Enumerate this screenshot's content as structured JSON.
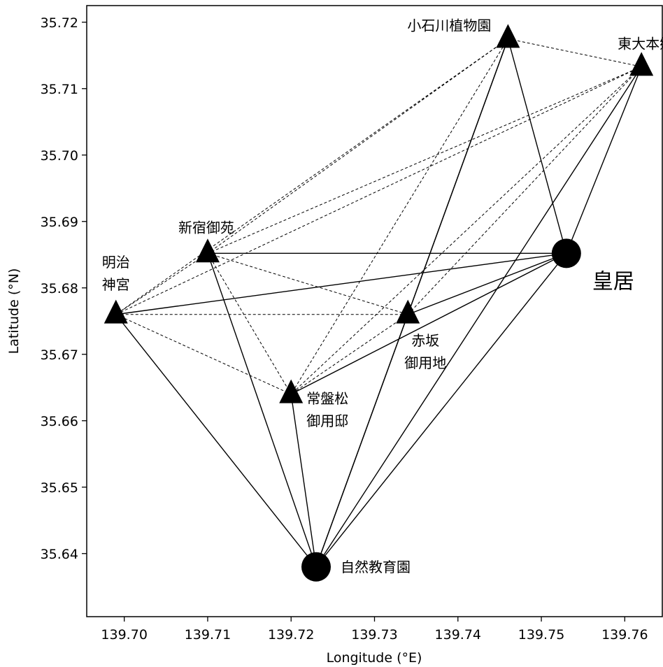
{
  "chart_data": {
    "type": "scatter",
    "title": "",
    "xlabel": "Longitude (°E)",
    "ylabel": "Latitude (°N)",
    "xlim": [
      139.6955,
      139.7645
    ],
    "ylim": [
      35.6305,
      35.7225
    ],
    "xticks": [
      139.7,
      139.71,
      139.72,
      139.73,
      139.74,
      139.75,
      139.76
    ],
    "xtick_labels": [
      "139.70",
      "139.71",
      "139.72",
      "139.73",
      "139.74",
      "139.75",
      "139.76"
    ],
    "yticks": [
      35.64,
      35.65,
      35.66,
      35.67,
      35.68,
      35.69,
      35.7,
      35.71,
      35.72
    ],
    "ytick_labels": [
      "35.64",
      "35.65",
      "35.66",
      "35.67",
      "35.68",
      "35.69",
      "35.70",
      "35.71",
      "35.72"
    ],
    "grid": false,
    "legend": "none",
    "marker_color": "#000000",
    "sites": [
      {
        "id": "koishikawa",
        "lines": [
          "小石川植物園"
        ],
        "lon": 139.746,
        "lat": 35.7175,
        "marker": "triangle",
        "label_side": "left"
      },
      {
        "id": "todai",
        "lines": [
          "東大本郷"
        ],
        "lon": 139.762,
        "lat": 35.7133,
        "marker": "triangle",
        "label_side": "above"
      },
      {
        "id": "shinjuku",
        "lines": [
          "新宿御苑"
        ],
        "lon": 139.71,
        "lat": 35.6852,
        "marker": "triangle",
        "label_side": "above"
      },
      {
        "id": "meiji",
        "lines": [
          "明治",
          "神宮"
        ],
        "lon": 139.699,
        "lat": 35.676,
        "marker": "triangle",
        "label_side": "above"
      },
      {
        "id": "akasaka",
        "lines": [
          "赤坂",
          "御用地"
        ],
        "lon": 139.734,
        "lat": 35.676,
        "marker": "triangle",
        "label_side": "below"
      },
      {
        "id": "tokiwamatsu",
        "lines": [
          "常盤松",
          "御用邸"
        ],
        "lon": 139.72,
        "lat": 35.664,
        "marker": "triangle",
        "label_side": "right"
      },
      {
        "id": "kokyo",
        "lines": [
          "皇居"
        ],
        "lon": 139.753,
        "lat": 35.6852,
        "marker": "circle",
        "label_side": "right",
        "large_label": true
      },
      {
        "id": "shizen",
        "lines": [
          "自然教育園"
        ],
        "lon": 139.723,
        "lat": 35.638,
        "marker": "circle",
        "label_side": "right"
      }
    ],
    "edges": [
      {
        "a": "shizen",
        "b": "meiji",
        "style": "solid"
      },
      {
        "a": "shizen",
        "b": "shinjuku",
        "style": "solid"
      },
      {
        "a": "shizen",
        "b": "tokiwamatsu",
        "style": "solid"
      },
      {
        "a": "shizen",
        "b": "akasaka",
        "style": "solid"
      },
      {
        "a": "shizen",
        "b": "kokyo",
        "style": "solid"
      },
      {
        "a": "shizen",
        "b": "koishikawa",
        "style": "solid"
      },
      {
        "a": "shizen",
        "b": "todai",
        "style": "solid"
      },
      {
        "a": "kokyo",
        "b": "shinjuku",
        "style": "solid"
      },
      {
        "a": "kokyo",
        "b": "meiji",
        "style": "solid"
      },
      {
        "a": "kokyo",
        "b": "akasaka",
        "style": "solid"
      },
      {
        "a": "kokyo",
        "b": "tokiwamatsu",
        "style": "solid"
      },
      {
        "a": "kokyo",
        "b": "koishikawa",
        "style": "solid"
      },
      {
        "a": "kokyo",
        "b": "todai",
        "style": "solid"
      },
      {
        "a": "akasaka",
        "b": "koishikawa",
        "style": "solid"
      },
      {
        "a": "koishikawa",
        "b": "todai",
        "style": "dashed"
      },
      {
        "a": "koishikawa",
        "b": "shinjuku",
        "style": "dashed"
      },
      {
        "a": "koishikawa",
        "b": "meiji",
        "style": "dashed"
      },
      {
        "a": "koishikawa",
        "b": "tokiwamatsu",
        "style": "dashed"
      },
      {
        "a": "todai",
        "b": "shinjuku",
        "style": "dashed"
      },
      {
        "a": "todai",
        "b": "meiji",
        "style": "dashed"
      },
      {
        "a": "todai",
        "b": "tokiwamatsu",
        "style": "dashed"
      },
      {
        "a": "todai",
        "b": "akasaka",
        "style": "dashed"
      },
      {
        "a": "shinjuku",
        "b": "meiji",
        "style": "dashed"
      },
      {
        "a": "shinjuku",
        "b": "akasaka",
        "style": "dashed"
      },
      {
        "a": "shinjuku",
        "b": "tokiwamatsu",
        "style": "dashed"
      },
      {
        "a": "meiji",
        "b": "akasaka",
        "style": "dashed"
      },
      {
        "a": "meiji",
        "b": "tokiwamatsu",
        "style": "dashed"
      },
      {
        "a": "akasaka",
        "b": "tokiwamatsu",
        "style": "dashed"
      }
    ]
  }
}
